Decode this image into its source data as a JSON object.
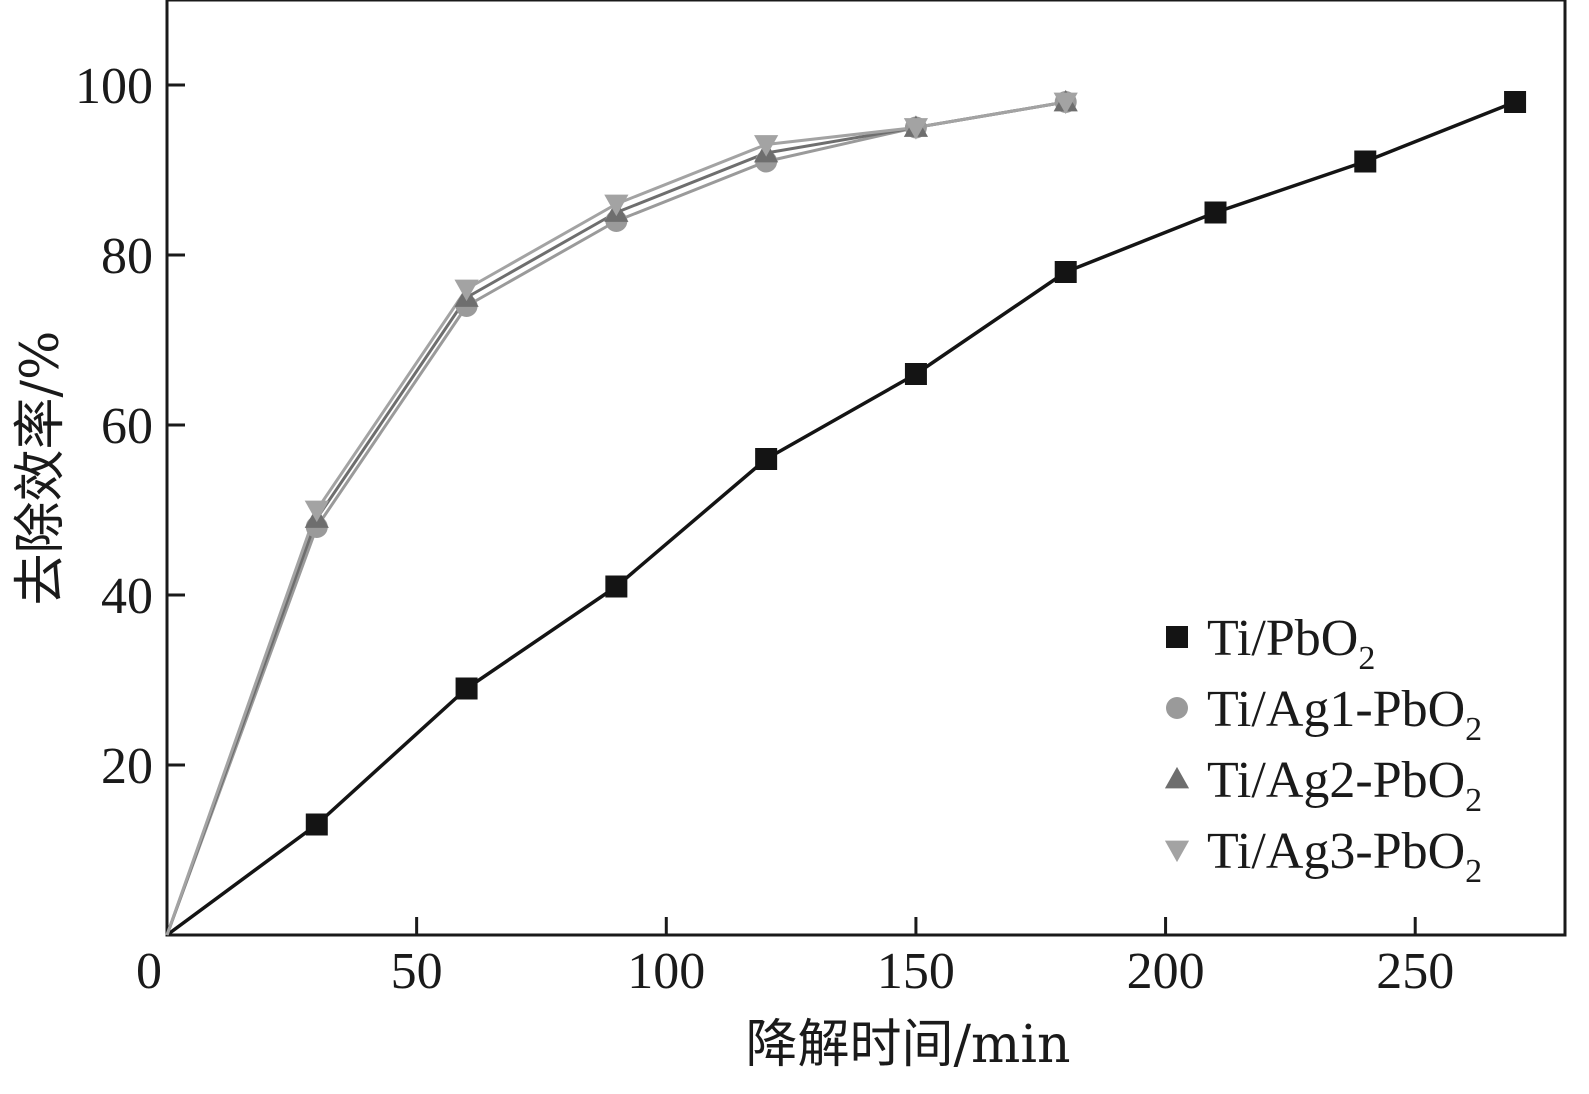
{
  "chart_data": {
    "type": "line",
    "xlabel": "降解时间/min",
    "ylabel": "去除效率/%",
    "xlim": [
      0,
      280
    ],
    "ylim": [
      0,
      110
    ],
    "xticks": [
      0,
      50,
      100,
      150,
      200,
      250
    ],
    "yticks": [
      20,
      40,
      60,
      80,
      100
    ],
    "grid": false,
    "legend": {
      "placement": "bottom-right"
    },
    "series": [
      {
        "name": "Ti/PbO",
        "name_sub": "2",
        "marker": "square",
        "color": "#141414",
        "x": [
          0,
          30,
          60,
          90,
          120,
          150,
          180,
          210,
          240,
          270
        ],
        "y": [
          0,
          13,
          29,
          41,
          56,
          66,
          78,
          85,
          91,
          98
        ]
      },
      {
        "name": "Ti/Ag1-PbO",
        "name_sub": "2",
        "marker": "circle",
        "color": "#9a9a9a",
        "x": [
          0,
          30,
          60,
          90,
          120,
          150,
          180
        ],
        "y": [
          0,
          48,
          74,
          84,
          91,
          95,
          98
        ]
      },
      {
        "name": "Ti/Ag2-PbO",
        "name_sub": "2",
        "marker": "triangle-up",
        "color": "#6e6e6e",
        "x": [
          0,
          30,
          60,
          90,
          120,
          150,
          180
        ],
        "y": [
          0,
          49,
          75,
          85,
          92,
          95,
          98
        ]
      },
      {
        "name": "Ti/Ag3-PbO",
        "name_sub": "2",
        "marker": "triangle-down",
        "color": "#a3a3a3",
        "x": [
          0,
          30,
          60,
          90,
          120,
          150,
          180
        ],
        "y": [
          0,
          50,
          76,
          86,
          93,
          95,
          98
        ]
      }
    ]
  }
}
